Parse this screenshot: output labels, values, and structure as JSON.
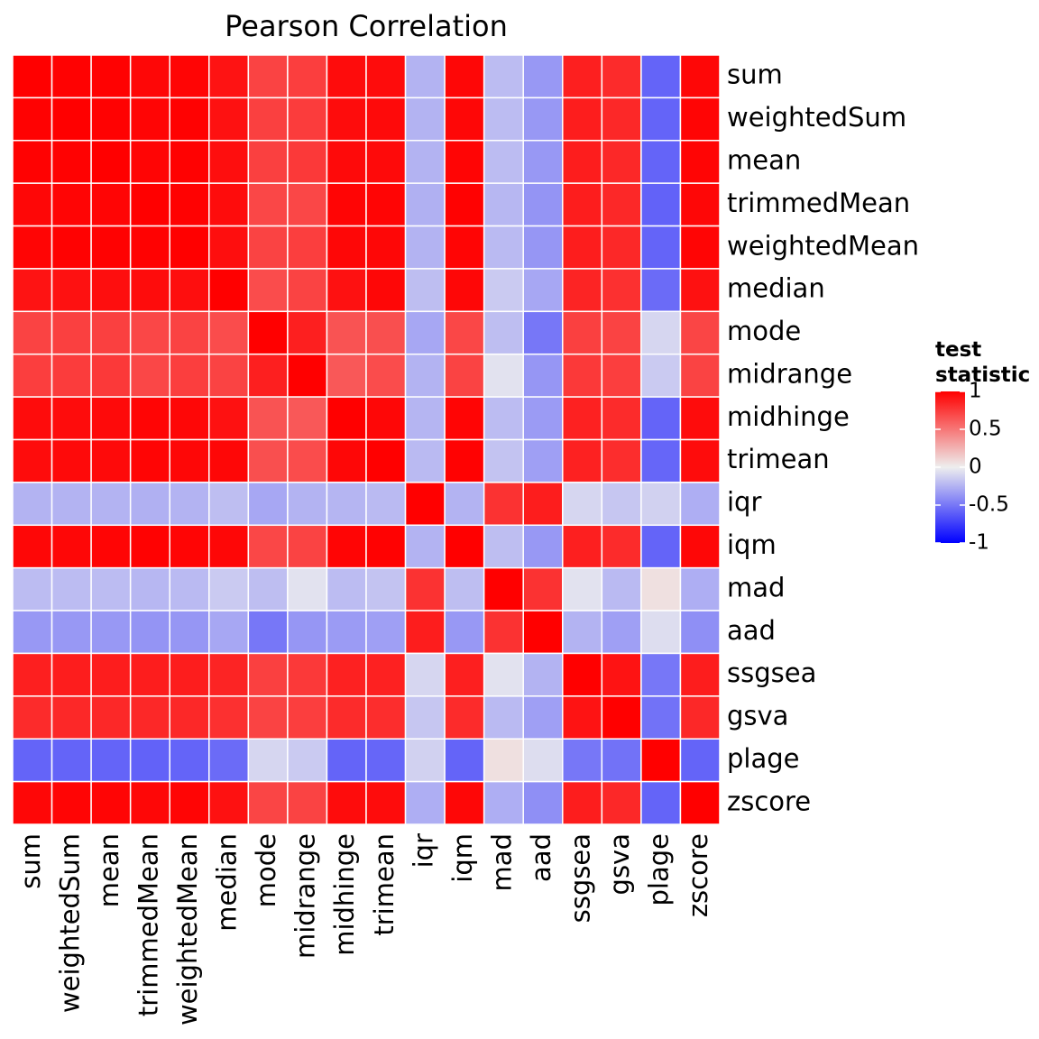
{
  "chart_data": {
    "type": "heatmap",
    "title": "Pearson Correlation",
    "labels": [
      "sum",
      "weightedSum",
      "mean",
      "trimmedMean",
      "weightedMean",
      "median",
      "mode",
      "midrange",
      "midhinge",
      "trimean",
      "iqr",
      "iqm",
      "mad",
      "aad",
      "ssgsea",
      "gsva",
      "plage",
      "zscore"
    ],
    "values": [
      [
        1.0,
        0.99,
        0.99,
        0.97,
        0.98,
        0.92,
        0.72,
        0.74,
        0.95,
        0.95,
        -0.25,
        0.97,
        -0.21,
        -0.36,
        0.87,
        0.82,
        -0.58,
        0.97
      ],
      [
        0.99,
        1.0,
        0.99,
        0.98,
        0.99,
        0.93,
        0.73,
        0.75,
        0.95,
        0.96,
        -0.25,
        0.97,
        -0.21,
        -0.36,
        0.88,
        0.83,
        -0.58,
        0.98
      ],
      [
        0.99,
        0.99,
        1.0,
        0.98,
        0.99,
        0.94,
        0.73,
        0.76,
        0.96,
        0.96,
        -0.25,
        0.98,
        -0.21,
        -0.36,
        0.88,
        0.83,
        -0.58,
        0.98
      ],
      [
        0.97,
        0.98,
        0.98,
        1.0,
        0.99,
        0.95,
        0.7,
        0.7,
        0.98,
        0.98,
        -0.26,
        0.99,
        -0.23,
        -0.38,
        0.88,
        0.83,
        -0.59,
        0.97
      ],
      [
        0.98,
        0.99,
        0.99,
        0.99,
        1.0,
        0.94,
        0.72,
        0.74,
        0.97,
        0.97,
        -0.25,
        0.98,
        -0.22,
        -0.37,
        0.88,
        0.83,
        -0.58,
        0.98
      ],
      [
        0.92,
        0.93,
        0.94,
        0.95,
        0.94,
        1.0,
        0.68,
        0.72,
        0.93,
        0.97,
        -0.2,
        0.97,
        -0.15,
        -0.3,
        0.85,
        0.8,
        -0.55,
        0.93
      ],
      [
        0.72,
        0.73,
        0.73,
        0.7,
        0.72,
        0.68,
        1.0,
        0.87,
        0.65,
        0.67,
        -0.3,
        0.7,
        -0.2,
        -0.5,
        0.73,
        0.72,
        -0.1,
        0.71
      ],
      [
        0.74,
        0.75,
        0.76,
        0.7,
        0.74,
        0.72,
        0.87,
        1.0,
        0.63,
        0.68,
        -0.25,
        0.72,
        -0.05,
        -0.37,
        0.76,
        0.74,
        -0.15,
        0.72
      ],
      [
        0.95,
        0.95,
        0.96,
        0.98,
        0.97,
        0.93,
        0.65,
        0.63,
        1.0,
        0.97,
        -0.24,
        0.98,
        -0.21,
        -0.35,
        0.86,
        0.82,
        -0.58,
        0.95
      ],
      [
        0.95,
        0.96,
        0.96,
        0.98,
        0.97,
        0.97,
        0.67,
        0.68,
        0.97,
        1.0,
        -0.22,
        0.99,
        -0.18,
        -0.33,
        0.86,
        0.81,
        -0.57,
        0.95
      ],
      [
        -0.25,
        -0.25,
        -0.25,
        -0.26,
        -0.25,
        -0.2,
        -0.3,
        -0.25,
        -0.24,
        -0.22,
        1.0,
        -0.25,
        0.79,
        0.88,
        -0.1,
        -0.17,
        -0.12,
        -0.27
      ],
      [
        0.97,
        0.97,
        0.98,
        0.99,
        0.98,
        0.97,
        0.7,
        0.72,
        0.98,
        0.99,
        -0.25,
        1.0,
        -0.2,
        -0.36,
        0.87,
        0.82,
        -0.58,
        0.97
      ],
      [
        -0.21,
        -0.21,
        -0.21,
        -0.23,
        -0.22,
        -0.15,
        -0.2,
        -0.05,
        -0.21,
        -0.18,
        0.79,
        -0.2,
        1.0,
        0.79,
        -0.05,
        -0.22,
        0.06,
        -0.27
      ],
      [
        -0.36,
        -0.36,
        -0.36,
        -0.38,
        -0.37,
        -0.3,
        -0.5,
        -0.37,
        -0.35,
        -0.33,
        0.88,
        -0.36,
        0.79,
        1.0,
        -0.25,
        -0.33,
        -0.07,
        -0.4
      ],
      [
        0.87,
        0.88,
        0.88,
        0.88,
        0.88,
        0.85,
        0.73,
        0.76,
        0.86,
        0.86,
        -0.1,
        0.87,
        -0.05,
        -0.25,
        1.0,
        0.92,
        -0.5,
        0.88
      ],
      [
        0.82,
        0.83,
        0.83,
        0.83,
        0.83,
        0.8,
        0.72,
        0.74,
        0.82,
        0.81,
        -0.17,
        0.82,
        -0.22,
        -0.33,
        0.92,
        1.0,
        -0.52,
        0.83
      ],
      [
        -0.58,
        -0.58,
        -0.58,
        -0.59,
        -0.58,
        -0.55,
        -0.1,
        -0.15,
        -0.58,
        -0.57,
        -0.12,
        -0.58,
        0.06,
        -0.07,
        -0.5,
        -0.52,
        1.0,
        -0.58
      ],
      [
        0.97,
        0.98,
        0.98,
        0.97,
        0.98,
        0.93,
        0.71,
        0.72,
        0.95,
        0.95,
        -0.27,
        0.97,
        -0.27,
        -0.4,
        0.88,
        0.83,
        -0.58,
        1.0
      ]
    ],
    "legend": {
      "title_lines": [
        "test",
        "statistic"
      ],
      "ticks": [
        1,
        0.5,
        0,
        -0.5,
        -1
      ],
      "tick_labels": [
        "1",
        "0.5",
        "0",
        "-0.5",
        "-1"
      ],
      "range": [
        -1,
        1
      ],
      "colors": {
        "low": "#0000FF",
        "mid": "#EEEEEE",
        "high": "#FF0000"
      },
      "placement": "right"
    }
  }
}
